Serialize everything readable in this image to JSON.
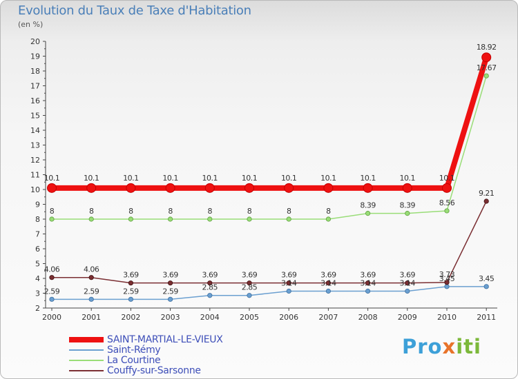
{
  "title": "Evolution du Taux de Taxe d'Habitation",
  "subtitle": "(en %)",
  "logo": {
    "part1": "Pro",
    "part2": "x",
    "part3": "iti"
  },
  "chart_data": {
    "type": "line",
    "title": "Evolution du Taux de Taxe d'Habitation",
    "ylabel": "(en %)",
    "xlabel": "",
    "ylim": [
      2,
      20
    ],
    "yticks": [
      "2",
      "3",
      "4",
      "5",
      "6",
      "7",
      "8",
      "9",
      "10",
      "11",
      "12",
      "13",
      "14",
      "15",
      "16",
      "17",
      "18",
      "19",
      "20"
    ],
    "categories": [
      "2000",
      "2001",
      "2002",
      "2003",
      "2004",
      "2005",
      "2006",
      "2007",
      "2008",
      "2009",
      "2010",
      "2011"
    ],
    "series": [
      {
        "name": "SAINT-MARTIAL-LE-VIEUX",
        "color": "#ee1111",
        "values": [
          10.1,
          10.1,
          10.1,
          10.1,
          10.1,
          10.1,
          10.1,
          10.1,
          10.1,
          10.1,
          10.1,
          18.92
        ],
        "labels": [
          "10.1",
          "10.1",
          "10.1",
          "10.1",
          "10.1",
          "10.1",
          "10.1",
          "10.1",
          "10.1",
          "10.1",
          "10.1",
          "18.92"
        ]
      },
      {
        "name": "Saint-Rémy",
        "color": "#6a9fd0",
        "values": [
          2.59,
          2.59,
          2.59,
          2.59,
          2.85,
          2.85,
          3.14,
          3.14,
          3.14,
          3.14,
          3.45,
          3.45
        ],
        "labels": [
          "2.59",
          "2.59",
          "2.59",
          "2.59",
          "2.85",
          "2.85",
          "3.14",
          "3.14",
          "3.14",
          "3.14",
          "3.45",
          "3.45"
        ]
      },
      {
        "name": "La Courtine",
        "color": "#99dd77",
        "values": [
          8,
          8,
          8,
          8,
          8,
          8,
          8,
          8,
          8.39,
          8.39,
          8.56,
          17.67
        ],
        "labels": [
          "8",
          "8",
          "8",
          "8",
          "8",
          "8",
          "8",
          "8",
          "8.39",
          "8.39",
          "8.56",
          "17.67"
        ]
      },
      {
        "name": "Couffy-sur-Sarsonne",
        "color": "#7a2e32",
        "values": [
          4.06,
          4.06,
          3.69,
          3.69,
          3.69,
          3.69,
          3.69,
          3.69,
          3.69,
          3.69,
          3.73,
          9.21
        ],
        "labels": [
          "4.06",
          "4.06",
          "3.69",
          "3.69",
          "3.69",
          "3.69",
          "3.69",
          "3.69",
          "3.69",
          "3.69",
          "3.73",
          "9.21"
        ]
      }
    ],
    "legend_position": "bottom-left",
    "grid": false
  }
}
